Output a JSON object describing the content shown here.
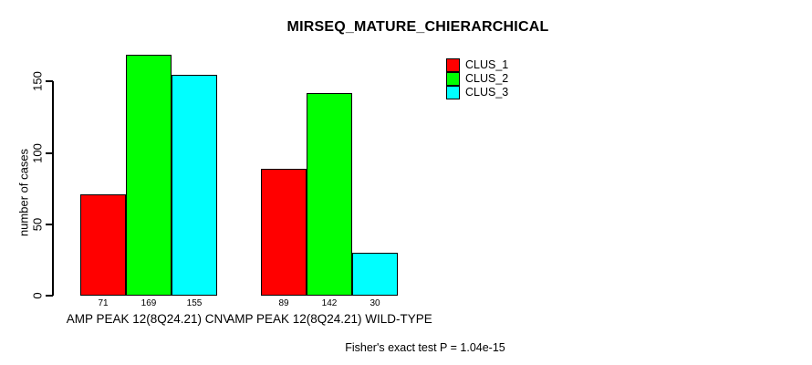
{
  "chart_data": {
    "type": "bar",
    "title": "MIRSEQ_MATURE_CHIERARCHICAL",
    "ylabel": "number of cases",
    "xlabel": "",
    "categories": [
      "AMP PEAK 12(8Q24.21) CNV",
      "AMP PEAK 12(8Q24.21) WILD-TYPE"
    ],
    "series": [
      {
        "name": "CLUS_1",
        "color": "#ff0000",
        "values": [
          71,
          89
        ]
      },
      {
        "name": "CLUS_2",
        "color": "#00ff00",
        "values": [
          169,
          142
        ]
      },
      {
        "name": "CLUS_3",
        "color": "#00ffff",
        "values": [
          155,
          30
        ]
      }
    ],
    "bar_value_labels": [
      [
        71,
        169,
        155
      ],
      [
        89,
        142,
        30
      ]
    ],
    "yticks": [
      0,
      50,
      100,
      150
    ],
    "ylim": [
      0,
      169
    ],
    "grid": false,
    "legend_position": "top-right",
    "annotation": "Fisher's exact test P = 1.04e-15",
    "text_color": "#000000",
    "background_color": "#ffffff"
  }
}
